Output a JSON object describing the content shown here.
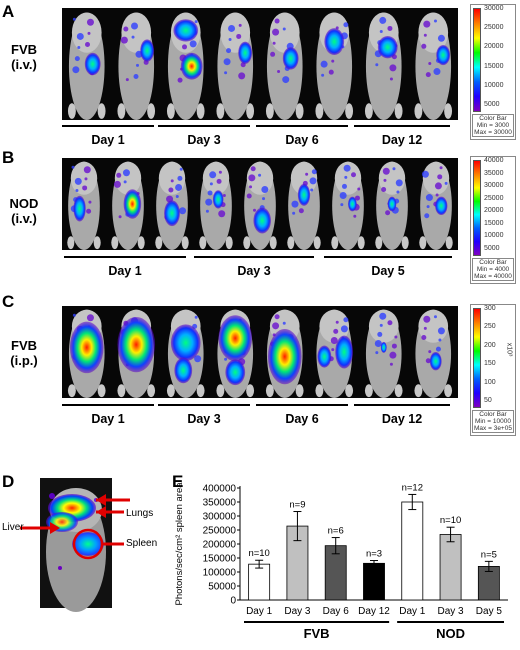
{
  "panels": {
    "A": {
      "letter": "A",
      "label": "FVB\n(i.v.)",
      "days": [
        "Day 1",
        "Day 3",
        "Day 6",
        "Day 12"
      ],
      "colorbar": {
        "ticks": [
          "30000",
          "25000",
          "20000",
          "15000",
          "10000",
          "5000"
        ],
        "title": "Color Bar",
        "min": "Min = 3000",
        "max": "Max = 30000"
      }
    },
    "B": {
      "letter": "B",
      "label": "NOD\n(i.v.)",
      "days": [
        "Day 1",
        "Day 3",
        "Day 5"
      ],
      "colorbar": {
        "ticks": [
          "40000",
          "35000",
          "30000",
          "25000",
          "20000",
          "15000",
          "10000",
          "5000"
        ],
        "title": "Color Bar",
        "min": "Min = 4000",
        "max": "Max = 40000"
      }
    },
    "C": {
      "letter": "C",
      "label": "FVB\n(i.p.)",
      "days": [
        "Day 1",
        "Day 3",
        "Day 6",
        "Day 12"
      ],
      "colorbar": {
        "ticks": [
          "300",
          "250",
          "200",
          "150",
          "100",
          "50"
        ],
        "unit": "x10³",
        "title": "Color Bar",
        "min": "Min = 10000",
        "max": "Max = 3e+05"
      }
    },
    "D": {
      "letter": "D",
      "labels": {
        "lungs": "Lungs",
        "liver": "Liver",
        "spleen": "Spleen"
      }
    },
    "E": {
      "letter": "E"
    }
  },
  "chart_data": {
    "type": "bar",
    "ylabel": "Photons/sec/cm² spleen area",
    "ylim": [
      0,
      400000
    ],
    "yticks": [
      "0",
      "50000",
      "100000",
      "150000",
      "200000",
      "250000",
      "300000",
      "350000",
      "400000"
    ],
    "categories": [
      "Day 1",
      "Day 3",
      "Day 6",
      "Day 12",
      "Day 1",
      "Day 3",
      "Day 5"
    ],
    "values": [
      128000,
      264000,
      194000,
      131000,
      350000,
      234000,
      120000
    ],
    "errors": [
      14000,
      52000,
      29000,
      10000,
      27000,
      26000,
      18000
    ],
    "n_labels": [
      "n=10",
      "n=9",
      "n=6",
      "n=3",
      "n=12",
      "n=10",
      "n=5"
    ],
    "bar_colors": [
      "#ffffff",
      "#c0c0c0",
      "#555555",
      "#000000",
      "#ffffff",
      "#c0c0c0",
      "#555555"
    ],
    "groups": [
      {
        "name": "FVB",
        "from": 0,
        "to": 3
      },
      {
        "name": "NOD",
        "from": 4,
        "to": 6
      }
    ]
  }
}
